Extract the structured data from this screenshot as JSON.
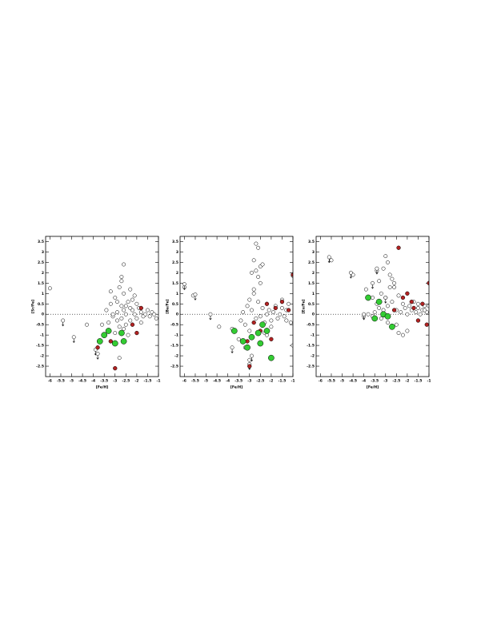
{
  "chart_data": [
    {
      "type": "scatter",
      "ylabel": "[Sr/Fe]",
      "xlabel": "[Fe/H]",
      "xlim": [
        -6.2,
        -1
      ],
      "ylim": [
        -3,
        3.75
      ],
      "xticks": [
        -6,
        -5.5,
        -5,
        -4.5,
        -4,
        -3.5,
        -3,
        -2.5,
        -2,
        -1.5,
        -1
      ],
      "yticks": [
        -2.5,
        -2,
        -1.5,
        -1,
        -0.5,
        0,
        0.5,
        1,
        1.5,
        2,
        2.5,
        3,
        3.5
      ],
      "reference_line": 0,
      "series": [
        {
          "marker": "circle",
          "facecolor": "#ffffff",
          "edgecolor": "#000000",
          "size": 2.2,
          "x": [
            -3.4,
            -3.3,
            -3.2,
            -3.1,
            -3.0,
            -2.9,
            -2.8,
            -2.7,
            -2.6,
            -2.5,
            -2.4,
            -2.3,
            -2.2,
            -2.1,
            -2.0,
            -1.9,
            -1.8,
            -1.7,
            -1.6,
            -1.5,
            -1.4,
            -1.3,
            -1.2,
            -1.1,
            -3.6,
            -3.0,
            -2.8,
            -2.6,
            -2.4,
            -2.2,
            -2.0,
            -1.8,
            -3.2,
            -2.9,
            -2.7,
            -2.5,
            -2.3,
            -2.1,
            -2.9,
            -2.6,
            -2.3,
            -3.1,
            -2.7,
            -2.5,
            -6.0,
            -4.3,
            -2.6,
            -2.7,
            -2.8
          ],
          "values": [
            0.2,
            -0.4,
            0.5,
            -0.1,
            0.8,
            0.1,
            -0.6,
            0.4,
            1.0,
            0.0,
            0.6,
            -0.3,
            0.2,
            0.9,
            -0.2,
            0.3,
            0.1,
            -0.1,
            0.0,
            0.2,
            -0.1,
            0.1,
            0.0,
            -0.2,
            -0.5,
            -0.9,
            1.3,
            -0.7,
            -1.0,
            0.7,
            0.5,
            -0.4,
            1.1,
            0.6,
            -0.2,
            0.4,
            0.3,
            0.0,
            -0.3,
            0.2,
            1.2,
            0.0,
            1.6,
            -0.5,
            1.25,
            -0.5,
            2.4,
            1.8,
            -2.1
          ]
        },
        {
          "marker": "upper_limit",
          "facecolor": "#ffffff",
          "edgecolor": "#000000",
          "size": 2.2,
          "x": [
            -5.4,
            -4.9,
            -3.9,
            -3.8
          ],
          "values": [
            -0.3,
            -1.1,
            -1.7,
            -1.9
          ]
        },
        {
          "marker": "circle",
          "facecolor": "#b22222",
          "edgecolor": "#000000",
          "size": 2.4,
          "x": [
            -3.0,
            -3.8,
            -2.0,
            -1.8,
            -2.2,
            -3.2
          ],
          "values": [
            -2.6,
            -1.6,
            -0.9,
            0.3,
            -0.5,
            -1.3
          ]
        },
        {
          "marker": "circle",
          "facecolor": "#33cc33",
          "edgecolor": "#000000",
          "size": 3.6,
          "x": [
            -3.3,
            -3.0,
            -2.6,
            -3.7,
            -3.5,
            -2.7
          ],
          "values": [
            -0.8,
            -1.4,
            -1.3,
            -1.3,
            -1.0,
            -0.9
          ]
        }
      ]
    },
    {
      "type": "scatter",
      "ylabel": "[Ba/Fe]",
      "xlabel": "[Fe/H]",
      "xlim": [
        -6.2,
        -1
      ],
      "ylim": [
        -3,
        3.75
      ],
      "xticks": [
        -6,
        -5.5,
        -5,
        -4.5,
        -4,
        -3.5,
        -3,
        -2.5,
        -2,
        -1.5,
        -1
      ],
      "yticks": [
        -2.5,
        -2,
        -1.5,
        -1,
        -0.5,
        0,
        0.5,
        1,
        1.5,
        2,
        2.5,
        3,
        3.5
      ],
      "reference_line": 0,
      "series": [
        {
          "marker": "circle",
          "facecolor": "#ffffff",
          "edgecolor": "#000000",
          "size": 2.2,
          "x": [
            -3.4,
            -3.3,
            -3.2,
            -3.1,
            -3.0,
            -2.9,
            -2.8,
            -2.7,
            -2.6,
            -2.5,
            -2.4,
            -2.3,
            -2.2,
            -2.1,
            -2.0,
            -1.9,
            -1.8,
            -1.7,
            -1.6,
            -1.5,
            -1.4,
            -1.3,
            -1.2,
            -1.1,
            -2.9,
            -2.8,
            -2.7,
            -2.6,
            -2.5,
            -2.6,
            -2.7,
            -2.5,
            -2.8,
            -2.4,
            -3.8,
            -3.5,
            -3.2,
            -2.3,
            -2.0,
            -1.5,
            -1.0,
            -3.0,
            -2.2,
            -1.3,
            -6.0,
            -5.6,
            -4.4,
            -1.0,
            -3.0
          ],
          "values": [
            -0.3,
            0.1,
            -0.5,
            0.4,
            -0.8,
            0.2,
            1.0,
            -0.2,
            0.6,
            -0.1,
            0.3,
            -0.4,
            0.0,
            0.2,
            -0.3,
            0.1,
            0.4,
            -0.2,
            0.0,
            0.3,
            -0.1,
            0.2,
            0.5,
            -0.4,
            2.0,
            2.6,
            3.4,
            3.2,
            2.3,
            1.8,
            2.1,
            1.5,
            1.2,
            2.4,
            -0.7,
            -1.2,
            -1.6,
            -0.9,
            -0.6,
            0.7,
            -1.5,
            -2.2,
            -1.0,
            -0.3,
            1.3,
            0.9,
            -0.6,
            1.85,
            0.7
          ]
        },
        {
          "marker": "upper_limit",
          "facecolor": "#ffffff",
          "edgecolor": "#000000",
          "size": 2.2,
          "x": [
            -6.0,
            -5.5,
            -4.8,
            -3.8,
            -3.0,
            -2.9
          ],
          "values": [
            1.45,
            0.95,
            0,
            -1.6,
            -2.4,
            -2.0
          ]
        },
        {
          "marker": "circle",
          "facecolor": "#b22222",
          "edgecolor": "#000000",
          "size": 2.4,
          "x": [
            -3.0,
            -2.5,
            -2.2,
            -2.0,
            -1.8,
            -1.5,
            -1.2,
            -1.0,
            -3.1,
            -2.8
          ],
          "values": [
            -2.5,
            -0.8,
            0.5,
            -1.2,
            0.3,
            0.6,
            0.2,
            1.9,
            -1.3,
            -0.4
          ]
        },
        {
          "marker": "circle",
          "facecolor": "#33cc33",
          "edgecolor": "#000000",
          "size": 3.6,
          "x": [
            -3.7,
            -3.3,
            -3.1,
            -2.9,
            -2.6,
            -2.4,
            -2.2,
            -2.0,
            -2.5
          ],
          "values": [
            -0.8,
            -1.3,
            -1.6,
            -1.1,
            -0.9,
            -0.5,
            -0.8,
            -2.1,
            -1.4
          ]
        }
      ]
    },
    {
      "type": "scatter",
      "ylabel": "[Eu/Fe]",
      "xlabel": "[Fe/H]",
      "xlim": [
        -6.2,
        -1
      ],
      "ylim": [
        -3,
        3.75
      ],
      "xticks": [
        -6,
        -5.5,
        -5,
        -4.5,
        -4,
        -3.5,
        -3,
        -2.5,
        -2,
        -1.5,
        -1
      ],
      "yticks": [
        -2.5,
        -2,
        -1.5,
        -1,
        -0.5,
        0,
        0.5,
        1,
        1.5,
        2,
        2.5,
        3,
        3.5
      ],
      "reference_line": 0,
      "series": [
        {
          "marker": "circle",
          "facecolor": "#ffffff",
          "edgecolor": "#000000",
          "size": 2.2,
          "x": [
            -3.4,
            -3.3,
            -3.2,
            -3.1,
            -3.0,
            -2.9,
            -2.8,
            -2.7,
            -2.6,
            -2.5,
            -2.4,
            -2.3,
            -2.2,
            -2.1,
            -2.0,
            -1.9,
            -1.8,
            -1.7,
            -1.6,
            -1.5,
            -1.4,
            -1.3,
            -1.2,
            -1.1,
            -3.1,
            -3.0,
            -2.9,
            -2.8,
            -2.7,
            -2.6,
            -3.3,
            -3.4,
            -2.5,
            -2.4,
            -3.8,
            -3.6,
            -3.5,
            -3.2,
            -2.9,
            -2.0,
            -1.5,
            -1.2,
            -2.2,
            -4.0,
            -5.5,
            -4.5,
            -3.9,
            -3.6,
            -1.0
          ],
          "values": [
            0.5,
            0.3,
            1.0,
            0.2,
            0.8,
            0.4,
            1.3,
            0.6,
            1.5,
            0.2,
            0.9,
            0.1,
            0.5,
            0.3,
            0.0,
            0.4,
            0.2,
            0.6,
            0.1,
            0.3,
            0.0,
            0.2,
            0.4,
            0.1,
            2.2,
            2.8,
            2.5,
            1.9,
            1.7,
            1.3,
            1.6,
            2.1,
            -0.5,
            -0.9,
            0.0,
            -0.1,
            0.1,
            -0.2,
            -0.4,
            -0.8,
            0.5,
            0.2,
            -1.0,
            -0.1,
            2.6,
            1.9,
            1.2,
            0.8,
            0.4
          ]
        },
        {
          "marker": "upper_limit",
          "facecolor": "#ffffff",
          "edgecolor": "#000000",
          "size": 2.2,
          "x": [
            -5.6,
            -4.6,
            -4.0,
            -3.6,
            -3.4,
            -3.0
          ],
          "values": [
            2.75,
            2.0,
            0.0,
            1.5,
            2.2,
            0.8
          ]
        },
        {
          "marker": "circle",
          "facecolor": "#b22222",
          "edgecolor": "#000000",
          "size": 2.4,
          "x": [
            -2.4,
            -2.0,
            -1.8,
            -1.5,
            -1.3,
            -1.1,
            -1.0,
            -2.2,
            -1.7,
            -2.6
          ],
          "values": [
            3.2,
            1.0,
            0.6,
            -0.3,
            0.5,
            -0.5,
            1.5,
            0.8,
            0.3,
            0.2
          ]
        },
        {
          "marker": "circle",
          "facecolor": "#33cc33",
          "edgecolor": "#000000",
          "size": 3.6,
          "x": [
            -3.8,
            -3.5,
            -3.3,
            -3.1,
            -2.9,
            -2.7
          ],
          "values": [
            0.8,
            -0.2,
            0.6,
            0.0,
            -0.1,
            -0.6
          ]
        }
      ]
    }
  ]
}
